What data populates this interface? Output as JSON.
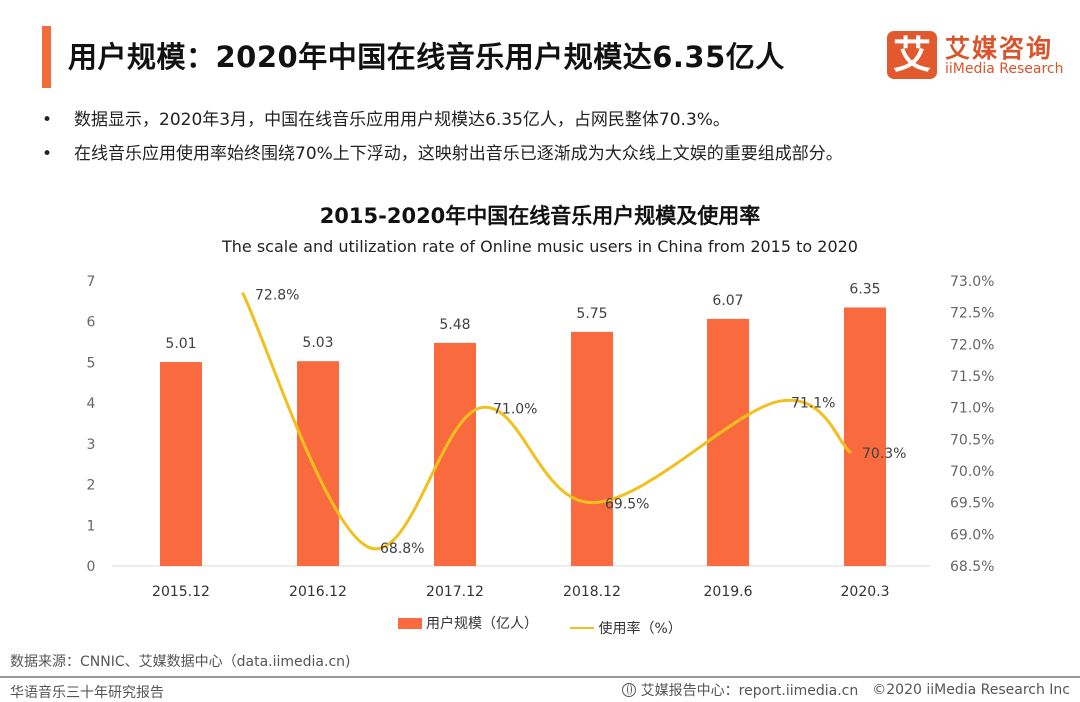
{
  "header": {
    "title": "用户规模：2020年中国在线音乐用户规模达6.35亿人",
    "logo_mark": "艾",
    "logo_cn": "艾媒咨询",
    "logo_en": "iiMedia Research",
    "accent_color": "#f26b3a"
  },
  "bullets": [
    {
      "symbol": "•",
      "text": "数据显示，2020年3月，中国在线音乐应用用户规模达6.35亿人，占网民整体70.3%。"
    },
    {
      "symbol": "•",
      "text": "在线音乐应用使用率始终围绕70%上下浮动，这映射出音乐已逐渐成为大众线上文娱的重要组成部分。"
    }
  ],
  "chart_data": {
    "type": "bar",
    "title": "2015-2020年中国在线音乐用户规模及使用率",
    "subtitle": "The scale and utilization rate of Online music users in China from 2015 to 2020",
    "categories": [
      "2015.12",
      "2016.12",
      "2017.12",
      "2018.12",
      "2019.6",
      "2020.3"
    ],
    "series": [
      {
        "name": "用户规模（亿人）",
        "type": "bar",
        "axis": "left",
        "color": "#f96b3f",
        "values": [
          5.01,
          5.03,
          5.48,
          5.75,
          6.07,
          6.35
        ],
        "labels": [
          "5.01",
          "5.03",
          "5.48",
          "5.75",
          "6.07",
          "6.35"
        ]
      },
      {
        "name": "使用率（%）",
        "type": "line",
        "smooth": true,
        "axis": "right",
        "color": "#f2c01e",
        "values": [
          72.8,
          68.8,
          71.0,
          69.5,
          71.1,
          70.3
        ],
        "labels": [
          "72.8%",
          "68.8%",
          "71.0%",
          "69.5%",
          "71.1%",
          "70.3%"
        ]
      }
    ],
    "y_left": {
      "min": 0,
      "max": 7,
      "ticks": [
        "0",
        "1",
        "2",
        "3",
        "4",
        "5",
        "6",
        "7"
      ]
    },
    "y_right": {
      "min": 68.5,
      "max": 73.0,
      "ticks": [
        "68.5%",
        "69.0%",
        "69.5%",
        "70.0%",
        "70.5%",
        "71.0%",
        "71.5%",
        "72.0%",
        "72.5%",
        "73.0%"
      ]
    },
    "grid": false,
    "legend": "bottom"
  },
  "footer": {
    "source": "数据来源：CNNIC、艾媒数据中心（data.iimedia.cn)",
    "report_name": "华语音乐三十年研究报告",
    "report_center": "艾媒报告中心：report.iimedia.cn",
    "copyright": "©2020  iiMedia Research  Inc"
  }
}
